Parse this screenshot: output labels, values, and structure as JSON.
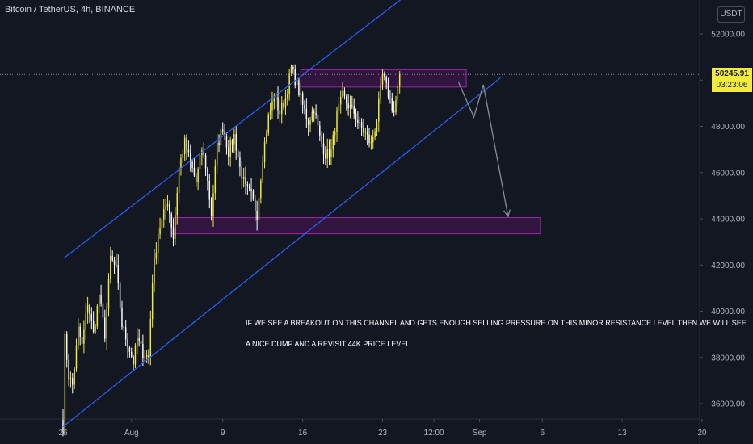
{
  "header": {
    "title": "Bitcoin / TetherUS, 4h, BINANCE"
  },
  "scale": {
    "currency": "USDT"
  },
  "last_price": {
    "price": "50245.91",
    "countdown": "03:23:06"
  },
  "note": {
    "line1": "IF WE SEE A BREAKOUT ON THIS CHANNEL AND GETS ENOUGH SELLING PRESSURE ON THIS MINOR RESISTANCE LEVEL THEN WE WILL SEE",
    "line2": "A NICE DUMP AND A REVISIT 44K PRICE LEVEL"
  },
  "colors": {
    "background": "#131722",
    "candle": "#f2eb3b",
    "candle_alt": "#ffffff",
    "channel": "#2962ff",
    "zone_border": "#9c27b0",
    "zone_fill": "#4a1458",
    "arrow": "#8a8d96",
    "axis_text": "#b2b5be"
  },
  "chart_data": {
    "type": "candlestick",
    "symbol": "BTCUSDT",
    "interval": "4h",
    "ylim": [
      35000,
      53000
    ],
    "y_ticks": [
      {
        "value": 36000,
        "label": "36000.00"
      },
      {
        "value": 38000,
        "label": "38000.00"
      },
      {
        "value": 40000,
        "label": "40000.00"
      },
      {
        "value": 42000,
        "label": "42000.00"
      },
      {
        "value": 44000,
        "label": "44000.00"
      },
      {
        "value": 46000,
        "label": "46000.00"
      },
      {
        "value": 48000,
        "label": "48000.00"
      },
      {
        "value": 50000,
        "label": "50000.00"
      },
      {
        "value": 52000,
        "label": "52000.00"
      }
    ],
    "x_ticks": [
      {
        "label": "26",
        "bar": 0
      },
      {
        "label": "Aug",
        "bar": 36
      },
      {
        "label": "9",
        "bar": 84
      },
      {
        "label": "16",
        "bar": 126
      },
      {
        "label": "23",
        "bar": 168
      },
      {
        "label": "12:00",
        "bar": 195
      },
      {
        "label": "Sep",
        "bar": 219
      },
      {
        "label": "6",
        "bar": 252
      },
      {
        "label": "13",
        "bar": 294
      },
      {
        "label": "20",
        "bar": 336
      }
    ],
    "x_range_bars": [
      -0.5,
      362
    ],
    "anchors": [
      [
        0,
        35100
      ],
      [
        1,
        38800
      ],
      [
        3,
        37200
      ],
      [
        5,
        36800
      ],
      [
        8,
        39200
      ],
      [
        10,
        38500
      ],
      [
        13,
        40400
      ],
      [
        16,
        39000
      ],
      [
        19,
        40700
      ],
      [
        22,
        39000
      ],
      [
        25,
        42300
      ],
      [
        28,
        41800
      ],
      [
        31,
        39400
      ],
      [
        34,
        38600
      ],
      [
        37,
        37800
      ],
      [
        39,
        38800
      ],
      [
        42,
        38200
      ],
      [
        45,
        38000
      ],
      [
        47,
        41400
      ],
      [
        50,
        43400
      ],
      [
        52,
        43900
      ],
      [
        55,
        44800
      ],
      [
        58,
        43200
      ],
      [
        61,
        46200
      ],
      [
        64,
        47300
      ],
      [
        67,
        46400
      ],
      [
        70,
        45600
      ],
      [
        73,
        47000
      ],
      [
        75,
        46300
      ],
      [
        78,
        44200
      ],
      [
        81,
        47100
      ],
      [
        84,
        48000
      ],
      [
        87,
        46900
      ],
      [
        90,
        47600
      ],
      [
        93,
        46200
      ],
      [
        96,
        45300
      ],
      [
        99,
        45000
      ],
      [
        102,
        44200
      ],
      [
        105,
        46700
      ],
      [
        108,
        48400
      ],
      [
        111,
        49300
      ],
      [
        114,
        48600
      ],
      [
        117,
        49200
      ],
      [
        120,
        50500
      ],
      [
        123,
        49800
      ],
      [
        126,
        48900
      ],
      [
        129,
        48200
      ],
      [
        132,
        48800
      ],
      [
        135,
        47500
      ],
      [
        138,
        46800
      ],
      [
        141,
        46900
      ],
      [
        144,
        48500
      ],
      [
        147,
        49300
      ],
      [
        150,
        48900
      ],
      [
        153,
        48600
      ],
      [
        156,
        48000
      ],
      [
        159,
        47700
      ],
      [
        162,
        47200
      ],
      [
        165,
        48300
      ],
      [
        168,
        50200
      ],
      [
        171,
        49400
      ],
      [
        174,
        48600
      ],
      [
        176,
        49600
      ],
      [
        177,
        50245.91
      ]
    ],
    "channel": {
      "upper": [
        {
          "bar": 0.5,
          "price": 42300
        },
        {
          "bar": 181,
          "price": 53700
        }
      ],
      "lower": [
        {
          "bar": 0,
          "price": 35000
        },
        {
          "bar": 230,
          "price": 50100
        }
      ]
    },
    "zones": [
      {
        "bar_start": 125,
        "bar_end": 212,
        "price_top": 50450,
        "price_bottom": 49700
      },
      {
        "bar_start": 57,
        "bar_end": 251,
        "price_top": 44050,
        "price_bottom": 43350
      }
    ],
    "arrow": [
      {
        "bar": 208,
        "price": 49900
      },
      {
        "bar": 216,
        "price": 48400
      },
      {
        "bar": 221,
        "price": 49800
      },
      {
        "bar": 234,
        "price": 44100
      }
    ],
    "current_price": 50245.91
  }
}
